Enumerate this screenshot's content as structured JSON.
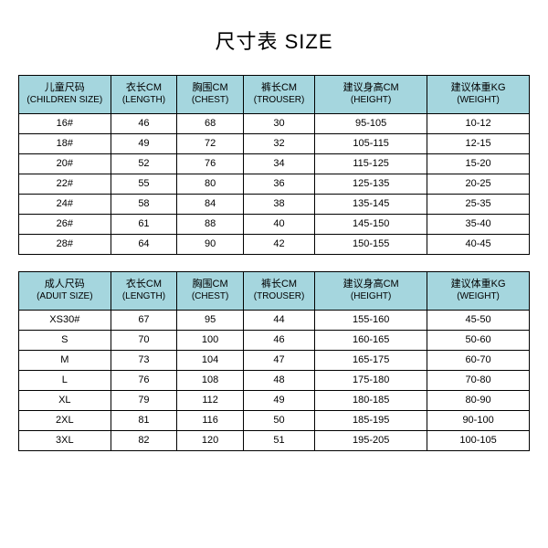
{
  "title": "尺寸表 SIZE",
  "header_bg": "#a5d6de",
  "row_bg": "#ffffff",
  "border_color": "#000000",
  "col_widths_pct": [
    18,
    13,
    13,
    14,
    22,
    20
  ],
  "children": {
    "columns": [
      {
        "cn": "儿童尺码",
        "en": "(CHILDREN SIZE)"
      },
      {
        "cn": "衣长CM",
        "en": "(LENGTH)"
      },
      {
        "cn": "胸围CM",
        "en": "(CHEST)"
      },
      {
        "cn": "裤长CM",
        "en": "(TROUSER)"
      },
      {
        "cn": "建议身高CM",
        "en": "(HEIGHT)"
      },
      {
        "cn": "建议体重KG",
        "en": "(WEIGHT)"
      }
    ],
    "rows": [
      [
        "16#",
        "46",
        "68",
        "30",
        "95-105",
        "10-12"
      ],
      [
        "18#",
        "49",
        "72",
        "32",
        "105-115",
        "12-15"
      ],
      [
        "20#",
        "52",
        "76",
        "34",
        "115-125",
        "15-20"
      ],
      [
        "22#",
        "55",
        "80",
        "36",
        "125-135",
        "20-25"
      ],
      [
        "24#",
        "58",
        "84",
        "38",
        "135-145",
        "25-35"
      ],
      [
        "26#",
        "61",
        "88",
        "40",
        "145-150",
        "35-40"
      ],
      [
        "28#",
        "64",
        "90",
        "42",
        "150-155",
        "40-45"
      ]
    ]
  },
  "adult": {
    "columns": [
      {
        "cn": "成人尺码",
        "en": "(ADUIT SIZE)"
      },
      {
        "cn": "衣长CM",
        "en": "(LENGTH)"
      },
      {
        "cn": "胸围CM",
        "en": "(CHEST)"
      },
      {
        "cn": "裤长CM",
        "en": "(TROUSER)"
      },
      {
        "cn": "建议身高CM",
        "en": "(HEIGHT)"
      },
      {
        "cn": "建议体重KG",
        "en": "(WEIGHT)"
      }
    ],
    "rows": [
      [
        "XS30#",
        "67",
        "95",
        "44",
        "155-160",
        "45-50"
      ],
      [
        "S",
        "70",
        "100",
        "46",
        "160-165",
        "50-60"
      ],
      [
        "M",
        "73",
        "104",
        "47",
        "165-175",
        "60-70"
      ],
      [
        "L",
        "76",
        "108",
        "48",
        "175-180",
        "70-80"
      ],
      [
        "XL",
        "79",
        "112",
        "49",
        "180-185",
        "80-90"
      ],
      [
        "2XL",
        "81",
        "116",
        "50",
        "185-195",
        "90-100"
      ],
      [
        "3XL",
        "82",
        "120",
        "51",
        "195-205",
        "100-105"
      ]
    ]
  }
}
